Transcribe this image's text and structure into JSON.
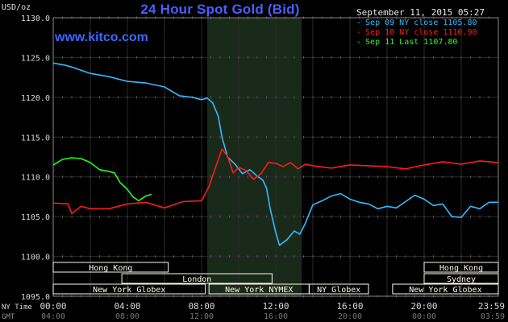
{
  "header": {
    "title": "24 Hour Spot Gold (Bid)",
    "unit": "USD/oz",
    "site": "www.kitco.com",
    "timestamp": "September 11, 2015 05:27"
  },
  "legend": [
    {
      "label": "Sep 09 NY close 1105.80",
      "color": "#33bbff"
    },
    {
      "label": "Sep 10 NY close 1110.90",
      "color": "#ff1a1a"
    },
    {
      "label": "Sep 11 Last 1107.80",
      "color": "#22ff22"
    }
  ],
  "colors": {
    "background": "#000000",
    "grid": "#2a2a2a",
    "axis_text": "#d8d8d8",
    "ny_session_shade": "#1a2a1a",
    "market_box_bg": "#fdfbe6"
  },
  "chart_data": {
    "type": "line",
    "title": "24 Hour Spot Gold (Bid)",
    "ylabel": "USD/oz",
    "xlabel": "",
    "ylim": [
      1095,
      1130
    ],
    "yticks": [
      "1095.0",
      "1100.0",
      "1105.0",
      "1110.0",
      "1115.0",
      "1120.0",
      "1125.0",
      "1130.0"
    ],
    "x_unit": "hours (NY time)",
    "xlim": [
      0,
      24
    ],
    "time_axes": {
      "ny_label": "NY Time",
      "gmt_label": "GMT",
      "ny_ticks": [
        {
          "x": 0,
          "label": "00:00"
        },
        {
          "x": 4,
          "label": "04:00"
        },
        {
          "x": 8,
          "label": "08:00"
        },
        {
          "x": 12,
          "label": "12:00"
        },
        {
          "x": 16,
          "label": "16:00"
        },
        {
          "x": 20,
          "label": "20:00"
        },
        {
          "x": 23.983,
          "label": "23:59"
        }
      ],
      "gmt_ticks": [
        {
          "x": 0,
          "label": "04:00"
        },
        {
          "x": 4,
          "label": "08:00"
        },
        {
          "x": 8,
          "label": "12:00"
        },
        {
          "x": 12,
          "label": "16:00"
        },
        {
          "x": 16,
          "label": "20:00"
        },
        {
          "x": 20,
          "label": "00:00"
        },
        {
          "x": 23.983,
          "label": "03:59"
        }
      ]
    },
    "highlight_range": [
      8.3,
      13.4
    ],
    "grid": true,
    "legend_position": "top-right",
    "series": [
      {
        "name": "Sep 09 NY close 1105.80",
        "color": "#33bbff",
        "x": [
          0,
          0.7,
          1,
          2,
          3,
          4,
          5,
          6,
          6.8,
          7.5,
          8,
          8.3,
          8.6,
          8.9,
          9.1,
          9.4,
          9.8,
          10.2,
          10.6,
          11,
          11.3,
          11.5,
          11.7,
          12,
          12.2,
          12.6,
          13,
          13.3,
          13.6,
          14,
          14.5,
          15,
          15.5,
          16,
          16.5,
          17,
          17.5,
          18,
          18.5,
          19,
          19.5,
          20,
          20.5,
          21,
          21.5,
          22,
          22.5,
          23,
          23.5,
          24
        ],
        "y": [
          1124.3,
          1124.0,
          1123.8,
          1123.0,
          1122.6,
          1122.0,
          1121.8,
          1121.3,
          1120.2,
          1120.0,
          1119.7,
          1119.9,
          1119.3,
          1117.6,
          1115.0,
          1112.5,
          1111.6,
          1110.4,
          1110.9,
          1110.1,
          1109.6,
          1108.6,
          1106.0,
          1103.0,
          1101.4,
          1102.1,
          1103.2,
          1102.8,
          1104.2,
          1106.5,
          1107.0,
          1107.6,
          1107.9,
          1107.2,
          1106.8,
          1106.6,
          1106.0,
          1106.3,
          1106.1,
          1106.9,
          1107.7,
          1107.2,
          1106.4,
          1106.6,
          1105.0,
          1104.9,
          1106.3,
          1106.0,
          1106.8,
          1106.8
        ]
      },
      {
        "name": "Sep 10 NY close 1110.90",
        "color": "#ff1a1a",
        "x": [
          0,
          0.8,
          1,
          1.5,
          2,
          3,
          4,
          5,
          6,
          7,
          8,
          8.4,
          8.8,
          9.1,
          9.4,
          9.7,
          10,
          10.4,
          10.8,
          11.2,
          11.6,
          12,
          12.4,
          12.8,
          13.2,
          13.6,
          14,
          15,
          16,
          17,
          18,
          19,
          20,
          21,
          22,
          23,
          24
        ],
        "y": [
          1106.7,
          1106.6,
          1105.4,
          1106.3,
          1106.0,
          1106.0,
          1106.6,
          1106.8,
          1106.1,
          1106.9,
          1107.0,
          1108.8,
          1111.5,
          1113.5,
          1112.6,
          1110.5,
          1111.2,
          1110.8,
          1109.7,
          1110.4,
          1111.8,
          1111.7,
          1111.3,
          1111.8,
          1111.0,
          1111.6,
          1111.4,
          1111.1,
          1111.5,
          1111.4,
          1111.3,
          1111.0,
          1111.5,
          1111.9,
          1111.6,
          1112.0,
          1111.8
        ]
      },
      {
        "name": "Sep 11 Last 1107.80",
        "color": "#22ff22",
        "x": [
          0,
          0.5,
          1,
          1.5,
          2,
          2.5,
          3,
          3.3,
          3.6,
          4,
          4.3,
          4.6,
          5,
          5.3
        ],
        "y": [
          1111.5,
          1112.2,
          1112.4,
          1112.3,
          1111.8,
          1110.9,
          1110.7,
          1110.5,
          1109.3,
          1108.4,
          1107.5,
          1107.0,
          1107.6,
          1107.8
        ]
      }
    ]
  },
  "market_sessions": [
    {
      "label": "Hong Kong",
      "start": 0,
      "end": 6.2,
      "row": 1
    },
    {
      "label": "London",
      "start": 3.7,
      "end": 11.8,
      "row": 2
    },
    {
      "label": "New York Globex",
      "start": 0,
      "end": 8.2,
      "row": 3
    },
    {
      "label": "New York NYMEX",
      "start": 8.4,
      "end": 13.8,
      "row": 3
    },
    {
      "label": "NY Globex",
      "start": 13.8,
      "end": 17.0,
      "row": 3
    },
    {
      "label": "Sydney",
      "start": 20.0,
      "end": 24,
      "row": 2
    },
    {
      "label": "Hong Kong",
      "start": 20.0,
      "end": 24,
      "row": 1
    },
    {
      "label": "New York Globex",
      "start": 18.3,
      "end": 24,
      "row": 3
    }
  ]
}
